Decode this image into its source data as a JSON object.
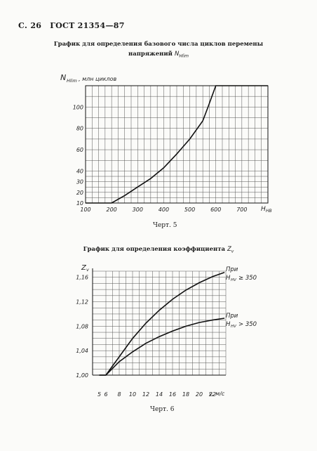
{
  "header": {
    "page": "С. 26",
    "standard": "ГОСТ 21354—87"
  },
  "figure1": {
    "title_line1": "График для определения базового числа циклов перемены",
    "title_line2": "напряжений",
    "title_symbol": "N",
    "title_symbol_sub": "Hlim",
    "caption": "Черт. 5",
    "ylabel_main": "N",
    "ylabel_sub": "Hlim",
    "ylabel_rest": ", млн циклов",
    "xlabel_main": "H",
    "xlabel_sub": "HB",
    "x_ticks": [
      "100",
      "200",
      "300",
      "400",
      "500",
      "600",
      "700"
    ],
    "y_ticks": [
      "10",
      "20",
      "30",
      "40",
      "60",
      "80",
      "100"
    ]
  },
  "figure2": {
    "title": "График для определения коэффициента",
    "title_symbol": "Z",
    "title_symbol_sub": "v",
    "caption": "Черт. 6",
    "ylabel_main": "Z",
    "ylabel_sub": "v",
    "xlabel": "v, м/с",
    "x_ticks": [
      "5",
      "6",
      "8",
      "10",
      "12",
      "14",
      "16",
      "18",
      "20",
      "22"
    ],
    "y_ticks": [
      "1,00",
      "1,04",
      "1,08",
      "1,12",
      "1,16"
    ],
    "upper_curve_label_line1": "При",
    "upper_curve_label_line2": "H",
    "upper_curve_label_sub": "HV",
    "upper_curve_label_rest": "≥ 350",
    "lower_curve_label_line1": "При",
    "lower_curve_label_line2": "H",
    "lower_curve_label_sub": "HV",
    "lower_curve_label_rest": "> 350"
  },
  "chart_data": [
    {
      "type": "line",
      "title": "График для определения базового числа циклов перемены напряжений N_Hlim",
      "xlabel": "H_HB",
      "ylabel": "N_Hlim, млн циклов",
      "xlim": [
        100,
        800
      ],
      "ylim": [
        10,
        120
      ],
      "y_tick_values": [
        10,
        20,
        30,
        40,
        60,
        80,
        100
      ],
      "grid": true,
      "series": [
        {
          "x": [
            100,
            200,
            250,
            300,
            350,
            400,
            450,
            500,
            550,
            570,
            600,
            650,
            700,
            800
          ],
          "y": [
            10,
            10,
            17,
            25,
            33,
            43,
            56,
            70,
            87,
            100,
            120,
            120,
            120,
            120
          ]
        }
      ]
    },
    {
      "type": "line",
      "title": "График для определения коэффициента Z_v",
      "xlabel": "v, м/с",
      "ylabel": "Z_v",
      "xlim": [
        5,
        24
      ],
      "ylim": [
        1.0,
        1.18
      ],
      "grid": true,
      "series": [
        {
          "name": "При H_HV ≥ 350",
          "x": [
            5,
            6,
            7,
            8,
            10,
            12,
            14,
            16,
            18,
            20,
            22,
            24
          ],
          "y": [
            1.0,
            1.0,
            1.015,
            1.03,
            1.06,
            1.085,
            1.106,
            1.124,
            1.139,
            1.151,
            1.161,
            1.168
          ]
        },
        {
          "name": "При H_HV > 350",
          "x": [
            5,
            6,
            8,
            10,
            12,
            14,
            16,
            18,
            20,
            22,
            24
          ],
          "y": [
            1.0,
            1.0,
            1.022,
            1.038,
            1.052,
            1.063,
            1.072,
            1.08,
            1.086,
            1.09,
            1.093
          ]
        }
      ]
    }
  ]
}
